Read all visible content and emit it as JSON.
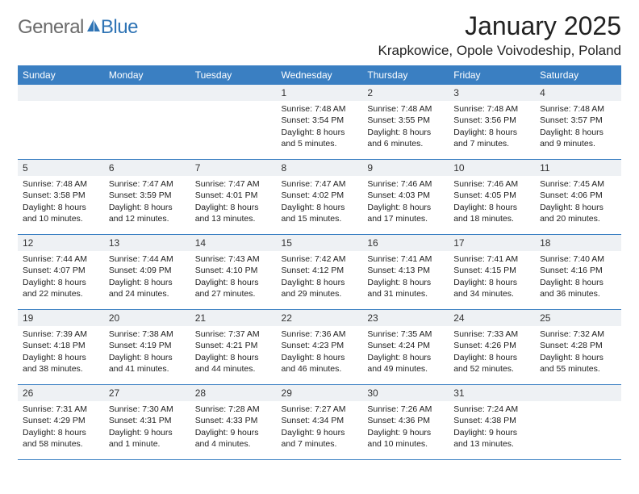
{
  "logo": {
    "text1": "General",
    "text2": "Blue"
  },
  "header": {
    "title": "January 2025",
    "location": "Krapkowice, Opole Voivodeship, Poland"
  },
  "colors": {
    "headerBg": "#3a7fc2",
    "headerText": "#ffffff",
    "dayStripe": "#eef1f4",
    "border": "#3a7fc2",
    "logoGray": "#6b6b6b",
    "logoBlue": "#2f74b5"
  },
  "dayNames": [
    "Sunday",
    "Monday",
    "Tuesday",
    "Wednesday",
    "Thursday",
    "Friday",
    "Saturday"
  ],
  "weeks": [
    [
      null,
      null,
      null,
      {
        "n": "1",
        "sr": "Sunrise: 7:48 AM",
        "ss": "Sunset: 3:54 PM",
        "d1": "Daylight: 8 hours",
        "d2": "and 5 minutes."
      },
      {
        "n": "2",
        "sr": "Sunrise: 7:48 AM",
        "ss": "Sunset: 3:55 PM",
        "d1": "Daylight: 8 hours",
        "d2": "and 6 minutes."
      },
      {
        "n": "3",
        "sr": "Sunrise: 7:48 AM",
        "ss": "Sunset: 3:56 PM",
        "d1": "Daylight: 8 hours",
        "d2": "and 7 minutes."
      },
      {
        "n": "4",
        "sr": "Sunrise: 7:48 AM",
        "ss": "Sunset: 3:57 PM",
        "d1": "Daylight: 8 hours",
        "d2": "and 9 minutes."
      }
    ],
    [
      {
        "n": "5",
        "sr": "Sunrise: 7:48 AM",
        "ss": "Sunset: 3:58 PM",
        "d1": "Daylight: 8 hours",
        "d2": "and 10 minutes."
      },
      {
        "n": "6",
        "sr": "Sunrise: 7:47 AM",
        "ss": "Sunset: 3:59 PM",
        "d1": "Daylight: 8 hours",
        "d2": "and 12 minutes."
      },
      {
        "n": "7",
        "sr": "Sunrise: 7:47 AM",
        "ss": "Sunset: 4:01 PM",
        "d1": "Daylight: 8 hours",
        "d2": "and 13 minutes."
      },
      {
        "n": "8",
        "sr": "Sunrise: 7:47 AM",
        "ss": "Sunset: 4:02 PM",
        "d1": "Daylight: 8 hours",
        "d2": "and 15 minutes."
      },
      {
        "n": "9",
        "sr": "Sunrise: 7:46 AM",
        "ss": "Sunset: 4:03 PM",
        "d1": "Daylight: 8 hours",
        "d2": "and 17 minutes."
      },
      {
        "n": "10",
        "sr": "Sunrise: 7:46 AM",
        "ss": "Sunset: 4:05 PM",
        "d1": "Daylight: 8 hours",
        "d2": "and 18 minutes."
      },
      {
        "n": "11",
        "sr": "Sunrise: 7:45 AM",
        "ss": "Sunset: 4:06 PM",
        "d1": "Daylight: 8 hours",
        "d2": "and 20 minutes."
      }
    ],
    [
      {
        "n": "12",
        "sr": "Sunrise: 7:44 AM",
        "ss": "Sunset: 4:07 PM",
        "d1": "Daylight: 8 hours",
        "d2": "and 22 minutes."
      },
      {
        "n": "13",
        "sr": "Sunrise: 7:44 AM",
        "ss": "Sunset: 4:09 PM",
        "d1": "Daylight: 8 hours",
        "d2": "and 24 minutes."
      },
      {
        "n": "14",
        "sr": "Sunrise: 7:43 AM",
        "ss": "Sunset: 4:10 PM",
        "d1": "Daylight: 8 hours",
        "d2": "and 27 minutes."
      },
      {
        "n": "15",
        "sr": "Sunrise: 7:42 AM",
        "ss": "Sunset: 4:12 PM",
        "d1": "Daylight: 8 hours",
        "d2": "and 29 minutes."
      },
      {
        "n": "16",
        "sr": "Sunrise: 7:41 AM",
        "ss": "Sunset: 4:13 PM",
        "d1": "Daylight: 8 hours",
        "d2": "and 31 minutes."
      },
      {
        "n": "17",
        "sr": "Sunrise: 7:41 AM",
        "ss": "Sunset: 4:15 PM",
        "d1": "Daylight: 8 hours",
        "d2": "and 34 minutes."
      },
      {
        "n": "18",
        "sr": "Sunrise: 7:40 AM",
        "ss": "Sunset: 4:16 PM",
        "d1": "Daylight: 8 hours",
        "d2": "and 36 minutes."
      }
    ],
    [
      {
        "n": "19",
        "sr": "Sunrise: 7:39 AM",
        "ss": "Sunset: 4:18 PM",
        "d1": "Daylight: 8 hours",
        "d2": "and 38 minutes."
      },
      {
        "n": "20",
        "sr": "Sunrise: 7:38 AM",
        "ss": "Sunset: 4:19 PM",
        "d1": "Daylight: 8 hours",
        "d2": "and 41 minutes."
      },
      {
        "n": "21",
        "sr": "Sunrise: 7:37 AM",
        "ss": "Sunset: 4:21 PM",
        "d1": "Daylight: 8 hours",
        "d2": "and 44 minutes."
      },
      {
        "n": "22",
        "sr": "Sunrise: 7:36 AM",
        "ss": "Sunset: 4:23 PM",
        "d1": "Daylight: 8 hours",
        "d2": "and 46 minutes."
      },
      {
        "n": "23",
        "sr": "Sunrise: 7:35 AM",
        "ss": "Sunset: 4:24 PM",
        "d1": "Daylight: 8 hours",
        "d2": "and 49 minutes."
      },
      {
        "n": "24",
        "sr": "Sunrise: 7:33 AM",
        "ss": "Sunset: 4:26 PM",
        "d1": "Daylight: 8 hours",
        "d2": "and 52 minutes."
      },
      {
        "n": "25",
        "sr": "Sunrise: 7:32 AM",
        "ss": "Sunset: 4:28 PM",
        "d1": "Daylight: 8 hours",
        "d2": "and 55 minutes."
      }
    ],
    [
      {
        "n": "26",
        "sr": "Sunrise: 7:31 AM",
        "ss": "Sunset: 4:29 PM",
        "d1": "Daylight: 8 hours",
        "d2": "and 58 minutes."
      },
      {
        "n": "27",
        "sr": "Sunrise: 7:30 AM",
        "ss": "Sunset: 4:31 PM",
        "d1": "Daylight: 9 hours",
        "d2": "and 1 minute."
      },
      {
        "n": "28",
        "sr": "Sunrise: 7:28 AM",
        "ss": "Sunset: 4:33 PM",
        "d1": "Daylight: 9 hours",
        "d2": "and 4 minutes."
      },
      {
        "n": "29",
        "sr": "Sunrise: 7:27 AM",
        "ss": "Sunset: 4:34 PM",
        "d1": "Daylight: 9 hours",
        "d2": "and 7 minutes."
      },
      {
        "n": "30",
        "sr": "Sunrise: 7:26 AM",
        "ss": "Sunset: 4:36 PM",
        "d1": "Daylight: 9 hours",
        "d2": "and 10 minutes."
      },
      {
        "n": "31",
        "sr": "Sunrise: 7:24 AM",
        "ss": "Sunset: 4:38 PM",
        "d1": "Daylight: 9 hours",
        "d2": "and 13 minutes."
      },
      null
    ]
  ]
}
